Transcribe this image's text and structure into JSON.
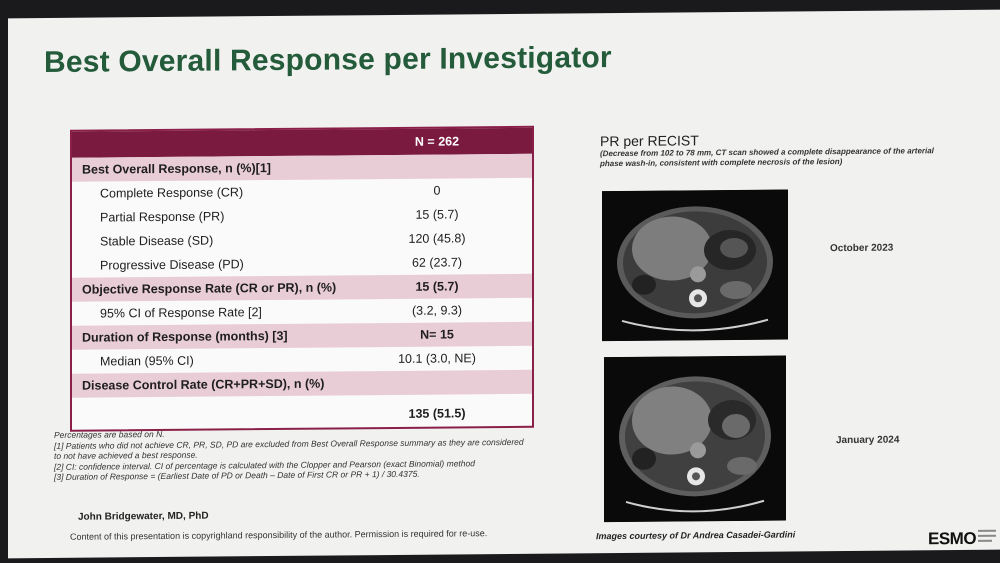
{
  "title": "Best Overall Response per Investigator",
  "table": {
    "header_value": "N = 262",
    "rows": [
      {
        "type": "sec",
        "label": "Best Overall Response, n (%)[1]",
        "value": ""
      },
      {
        "type": "ind",
        "label": "Complete Response (CR)",
        "value": "0"
      },
      {
        "type": "ind",
        "label": "Partial Response (PR)",
        "value": "15 (5.7)"
      },
      {
        "type": "ind",
        "label": "Stable Disease (SD)",
        "value": "120 (45.8)"
      },
      {
        "type": "ind",
        "label": "Progressive Disease (PD)",
        "value": "62 (23.7)"
      },
      {
        "type": "sec",
        "label": "Objective Response Rate (CR or PR), n (%)",
        "value": "15 (5.7)"
      },
      {
        "type": "ind",
        "label": "95% CI of Response Rate [2]",
        "value": "(3.2, 9.3)"
      },
      {
        "type": "sec",
        "label": "Duration of Response (months) [3]",
        "value": "N= 15"
      },
      {
        "type": "ind",
        "label": "Median (95% CI)",
        "value": "10.1 (3.0, NE)"
      },
      {
        "type": "sec",
        "label": "Disease Control Rate (CR+PR+SD), n (%)",
        "value": ""
      }
    ],
    "last_value": "135 (51.5)"
  },
  "footnotes": [
    "Percentages are based on N.",
    "[1] Patients who did not achieve CR, PR, SD, PD are excluded from Best Overall Response summary as they are considered to not have achieved a best response.",
    "[2] CI: confidence interval. CI of percentage is calculated with the Clopper and Pearson (exact Binomial) method",
    "[3] Duration of Response = (Earliest Date of PD or Death – Date of First CR or PR + 1) / 30.4375."
  ],
  "author": "John Bridgewater, MD, PhD",
  "copyright": "Content of this presentation is copyrighland responsibility of the author. Permission is required for re-use.",
  "pr": {
    "title": "PR per RECIST",
    "subtitle": "(Decrease from 102 to 78 mm, CT scan showed a complete disappearance of the arterial phase wash-in, consistent with complete necrosis of the lesion)"
  },
  "scans": [
    {
      "date": "October 2023"
    },
    {
      "date": "January 2024"
    }
  ],
  "courtesy": "Images courtesy of Dr Andrea Casadei-Gardini",
  "logo": {
    "text": "ESMO"
  }
}
